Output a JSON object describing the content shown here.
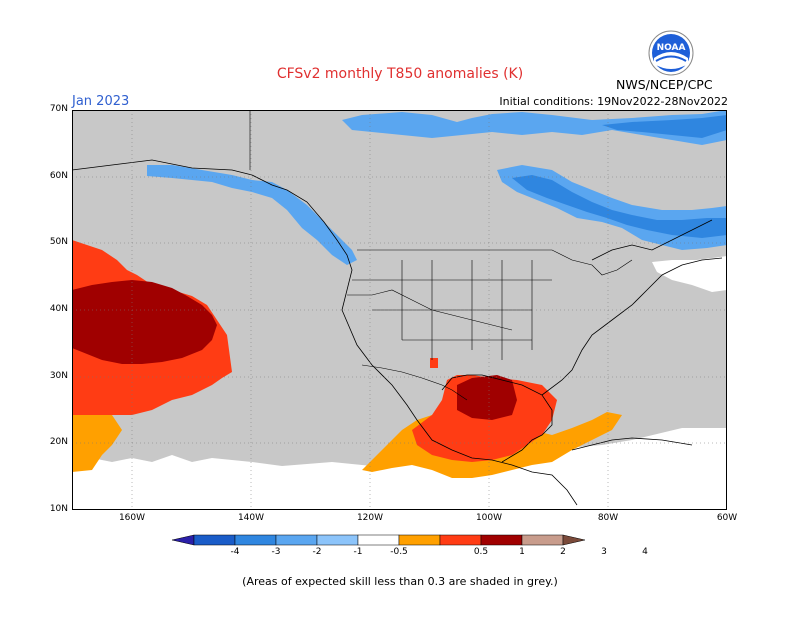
{
  "title": "CFSv2 monthly T850 anomalies (K)",
  "month": "Jan 2023",
  "initial_conditions": "Initial conditions: 19Nov2022-28Nov2022",
  "agency": "NWS/NCEP/CPC",
  "logo_text": "NOAA",
  "lat_labels": [
    "70N",
    "60N",
    "50N",
    "40N",
    "30N",
    "20N",
    "10N"
  ],
  "lon_labels": [
    "160W",
    "140W",
    "120W",
    "100W",
    "80W",
    "60W"
  ],
  "map_extent": {
    "lon_min": -170,
    "lon_max": -60,
    "lat_min": 10,
    "lat_max": 70
  },
  "colorbar": {
    "labels": [
      "-4",
      "-3",
      "-2",
      "-1",
      "-0.5",
      "0.5",
      "1",
      "2",
      "3",
      "4"
    ],
    "colors": [
      "#2a1fa8",
      "#1a5cc8",
      "#2f86e0",
      "#5aa6f0",
      "#8cc4fa",
      "#ffffff",
      "#ffa000",
      "#ff3c14",
      "#a00000",
      "#c89c8c",
      "#7a4a3a"
    ]
  },
  "colors": {
    "skill_grey": "#c8c8c8",
    "open": "#ffffff",
    "border": "#000000"
  },
  "footnote": "(Areas of expected skill less than 0.3 are shaded in grey.)"
}
